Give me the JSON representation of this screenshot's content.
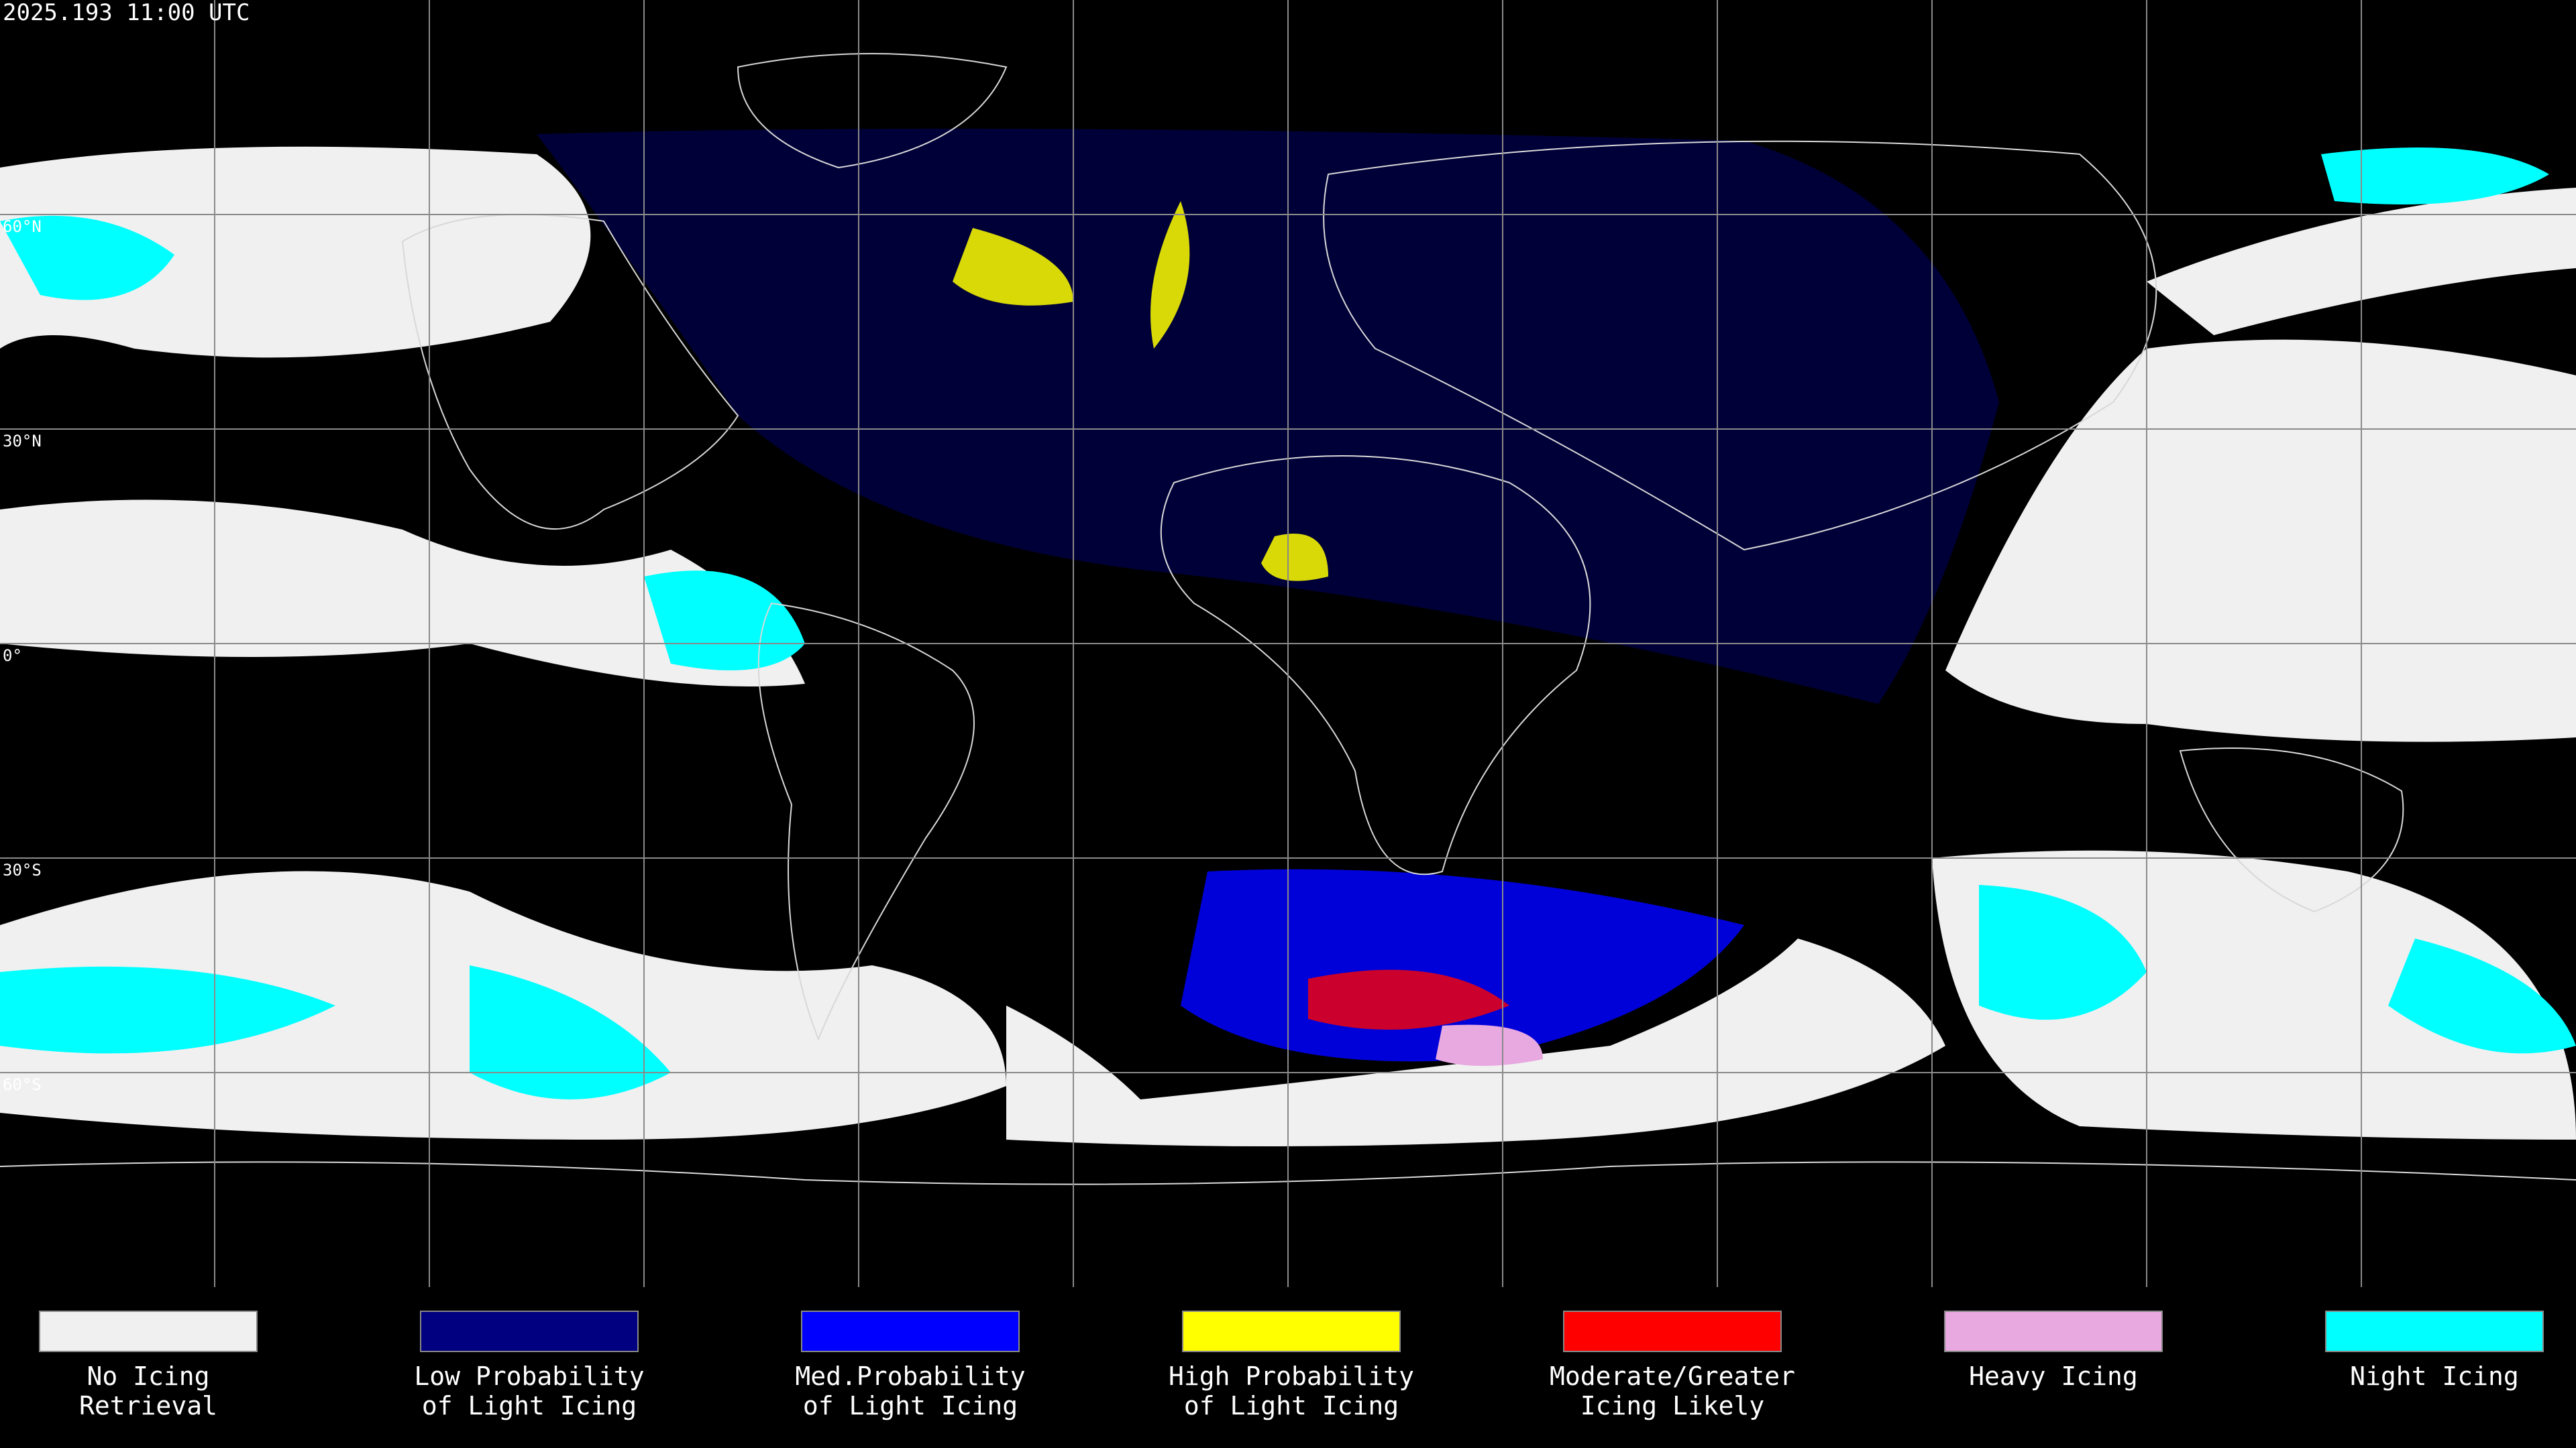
{
  "header": {
    "timestamp": "2025.193 11:00 UTC"
  },
  "map": {
    "latitude_labels": [
      "60°N",
      "30°N",
      "0°",
      "30°S",
      "60°S"
    ]
  },
  "legend": {
    "items": [
      {
        "label": [
          "No Icing",
          "Retrieval"
        ],
        "color": "#f0f0f0"
      },
      {
        "label": [
          "Low Probability",
          "of Light Icing"
        ],
        "color": "#000080"
      },
      {
        "label": [
          "Med.Probability",
          "of Light Icing"
        ],
        "color": "#0000ff"
      },
      {
        "label": [
          "High Probability",
          "of Light Icing"
        ],
        "color": "#ffff00"
      },
      {
        "label": [
          "Moderate/Greater",
          "Icing Likely"
        ],
        "color": "#ff0000"
      },
      {
        "label": [
          "Heavy Icing"
        ],
        "color": "#e8a8e0"
      },
      {
        "label": [
          "Night Icing"
        ],
        "color": "#00ffff"
      }
    ]
  }
}
